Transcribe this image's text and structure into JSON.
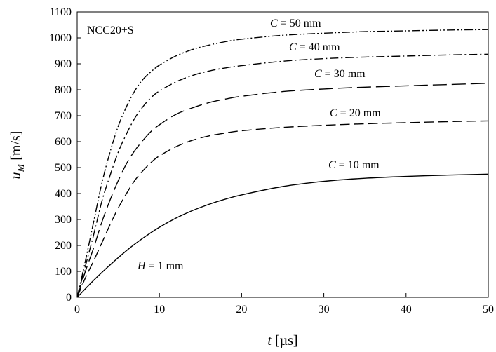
{
  "chart_data": {
    "type": "line",
    "title": "",
    "xlabel": {
      "var": "t",
      "unit": "[µs]"
    },
    "ylabel": {
      "var": "u",
      "sub": "M",
      "unit": "[m/s]"
    },
    "xlim": [
      0,
      50
    ],
    "ylim": [
      0,
      1100
    ],
    "xticks": [
      "0",
      "10",
      "20",
      "30",
      "40",
      "50"
    ],
    "yticks": [
      "0",
      "100",
      "200",
      "300",
      "400",
      "500",
      "600",
      "700",
      "800",
      "900",
      "1000",
      "1100"
    ],
    "grid": false,
    "legend": "none",
    "annotations": {
      "material": "NCC20+S",
      "height": {
        "var": "H",
        "rest": " = 1 mm"
      }
    },
    "series": [
      {
        "label": {
          "var": "C",
          "rest": " = 10 mm"
        },
        "dash": "solid",
        "x": [
          0,
          2,
          4,
          6,
          8,
          10,
          12,
          14,
          16,
          18,
          20,
          25,
          30,
          35,
          40,
          45,
          50
        ],
        "y": [
          0,
          65,
          125,
          180,
          228,
          270,
          305,
          334,
          358,
          378,
          395,
          427,
          447,
          459,
          466,
          471,
          475
        ]
      },
      {
        "label": {
          "var": "C",
          "rest": " = 20 mm"
        },
        "dash": "longdash",
        "x": [
          0,
          1,
          2,
          3,
          4,
          5,
          6,
          7,
          8,
          9,
          10,
          12,
          14,
          16,
          18,
          20,
          25,
          30,
          35,
          40,
          45,
          50
        ],
        "y": [
          0,
          75,
          140,
          210,
          280,
          345,
          400,
          450,
          488,
          520,
          545,
          580,
          605,
          622,
          633,
          642,
          655,
          663,
          669,
          673,
          677,
          680
        ]
      },
      {
        "label": {
          "var": "C",
          "rest": " = 30 mm"
        },
        "dash": "dash",
        "x": [
          0,
          1,
          2,
          3,
          4,
          5,
          6,
          7,
          8,
          9,
          10,
          12,
          14,
          16,
          18,
          20,
          25,
          30,
          35,
          40,
          45,
          50
        ],
        "y": [
          0,
          100,
          190,
          290,
          375,
          450,
          515,
          565,
          605,
          640,
          665,
          705,
          730,
          750,
          764,
          775,
          793,
          803,
          810,
          815,
          820,
          825
        ]
      },
      {
        "label": {
          "var": "C",
          "rest": " = 40 mm"
        },
        "dash": "dashdot",
        "x": [
          0,
          1,
          2,
          3,
          4,
          5,
          6,
          7,
          8,
          9,
          10,
          12,
          14,
          16,
          18,
          20,
          25,
          30,
          35,
          40,
          45,
          50
        ],
        "y": [
          0,
          120,
          240,
          370,
          470,
          560,
          630,
          690,
          735,
          770,
          795,
          830,
          855,
          872,
          884,
          893,
          910,
          920,
          926,
          930,
          934,
          937
        ]
      },
      {
        "label": {
          "var": "C",
          "rest": " = 50 mm"
        },
        "dash": "dashdotdot",
        "x": [
          0,
          1,
          2,
          3,
          4,
          5,
          6,
          7,
          8,
          9,
          10,
          12,
          14,
          16,
          18,
          20,
          25,
          30,
          35,
          40,
          45,
          50
        ],
        "y": [
          0,
          140,
          290,
          440,
          560,
          660,
          735,
          795,
          840,
          870,
          895,
          930,
          955,
          972,
          985,
          995,
          1010,
          1018,
          1024,
          1027,
          1030,
          1032
        ]
      }
    ]
  }
}
